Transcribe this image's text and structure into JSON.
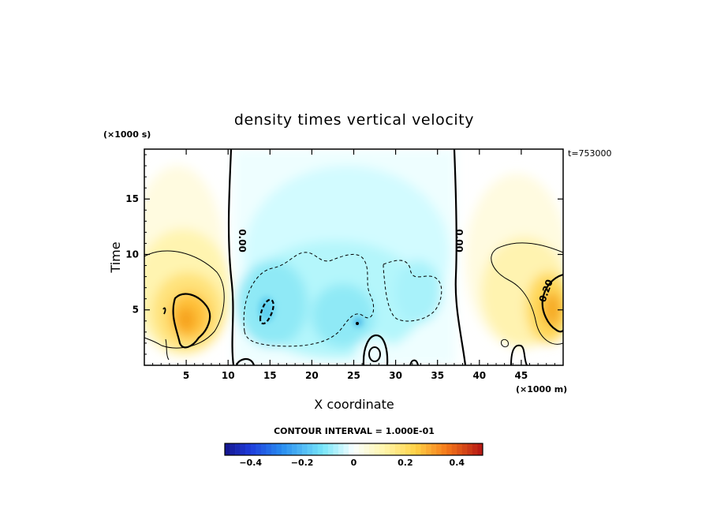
{
  "chart_data": {
    "type": "heatmap",
    "title": "density times vertical velocity",
    "xlabel": "X coordinate",
    "ylabel": "Time",
    "x_unit": "(×1000 m)",
    "y_unit": "(×1000 s)",
    "time_annotation": "t=753000",
    "xlim": [
      0,
      50
    ],
    "ylim": [
      0,
      19.5
    ],
    "x_ticks": [
      "5",
      "10",
      "15",
      "20",
      "25",
      "30",
      "35",
      "40",
      "45"
    ],
    "y_ticks": [
      "5",
      "10",
      "15"
    ],
    "contour_interval_text": "CONTOUR INTERVAL = 1.000E-01",
    "contour_labels": [
      "0.00",
      "0.00",
      "0.20"
    ],
    "colorbar": {
      "range": [
        -0.5,
        0.5
      ],
      "ticks": [
        "−0.4",
        "−0.2",
        "0",
        "0.2",
        "0.4"
      ]
    },
    "regions": [
      {
        "x": 5,
        "y": 4.5,
        "peak": 0.3
      },
      {
        "x": 4.5,
        "y": 12,
        "peak": 0.05
      },
      {
        "x": 15,
        "y": 6,
        "peak": -0.2
      },
      {
        "x": 25,
        "y": 5,
        "peak": -0.15
      },
      {
        "x": 27.5,
        "y": 1.2,
        "peak": 0.02
      },
      {
        "x": 48,
        "y": 5,
        "peak": 0.25
      },
      {
        "x": 45,
        "y": 15,
        "peak": 0.05
      }
    ]
  }
}
